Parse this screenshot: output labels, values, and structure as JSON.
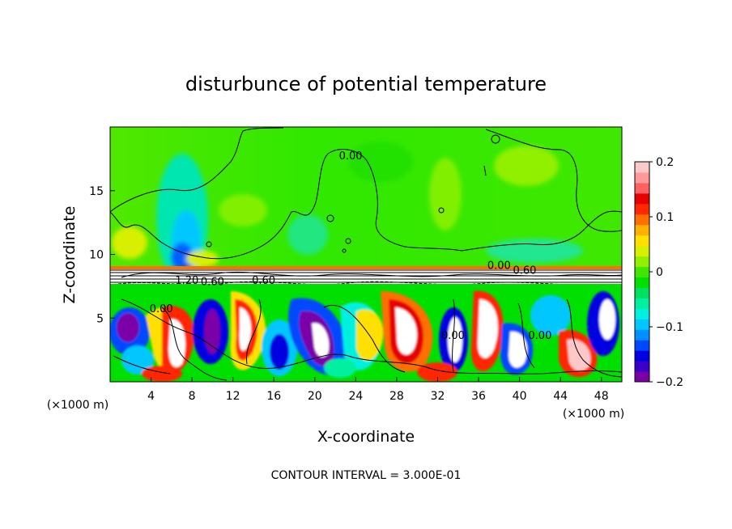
{
  "chart_data": {
    "type": "heatmap",
    "title": "disturbunce of potential temperature",
    "xlabel": "X-coordinate",
    "ylabel": "Z-coordinate",
    "x_unit": "(×1000 m)",
    "x_unit_right": "(×1000 m)",
    "footer": "CONTOUR INTERVAL = 3.000E-01",
    "xlim": [
      0,
      50
    ],
    "ylim": [
      0,
      20
    ],
    "xticks": [
      {
        "v": 4,
        "label": "4"
      },
      {
        "v": 8,
        "label": "8"
      },
      {
        "v": 12,
        "label": "12"
      },
      {
        "v": 16,
        "label": "16"
      },
      {
        "v": 20,
        "label": "20"
      },
      {
        "v": 24,
        "label": "24"
      },
      {
        "v": 28,
        "label": "28"
      },
      {
        "v": 32,
        "label": "32"
      },
      {
        "v": 36,
        "label": "36"
      },
      {
        "v": 40,
        "label": "40"
      },
      {
        "v": 44,
        "label": "44"
      },
      {
        "v": 48,
        "label": "48"
      }
    ],
    "yticks": [
      {
        "v": 5,
        "label": "5"
      },
      {
        "v": 10,
        "label": "10"
      },
      {
        "v": 15,
        "label": "15"
      }
    ],
    "colorbar": {
      "min": -0.2,
      "max": 0.2,
      "ticks": [
        {
          "v": 0.2,
          "label": "0.2"
        },
        {
          "v": 0.1,
          "label": "0.1"
        },
        {
          "v": 0,
          "label": "0"
        },
        {
          "v": -0.1,
          "label": "−0.1"
        },
        {
          "v": -0.2,
          "label": "−0.2"
        }
      ],
      "colors": [
        "#7b00a8",
        "#3a00c8",
        "#0000e0",
        "#0048ff",
        "#0090ff",
        "#00c8ff",
        "#00f0e0",
        "#00f0a0",
        "#00e060",
        "#00e000",
        "#40e600",
        "#90f000",
        "#d8f000",
        "#ffe000",
        "#ffb000",
        "#ff7000",
        "#ff2800",
        "#e60000",
        "#ff6060",
        "#ff9898",
        "#ffc8c8"
      ]
    },
    "contour_labels": [
      {
        "x": 23.5,
        "y": 17.6,
        "text": "0.00"
      },
      {
        "x": 38.0,
        "y": 9.0,
        "text": "0.00"
      },
      {
        "x": 40.5,
        "y": 8.6,
        "text": "0.60"
      },
      {
        "x": 7.5,
        "y": 7.8,
        "text": "1.20"
      },
      {
        "x": 10.0,
        "y": 7.7,
        "text": "0.60"
      },
      {
        "x": 15.0,
        "y": 7.8,
        "text": "0.60"
      },
      {
        "x": 5.0,
        "y": 5.6,
        "text": "0.00"
      },
      {
        "x": 33.5,
        "y": 3.5,
        "text": "0.00"
      },
      {
        "x": 42.0,
        "y": 3.5,
        "text": "0.00"
      }
    ]
  }
}
